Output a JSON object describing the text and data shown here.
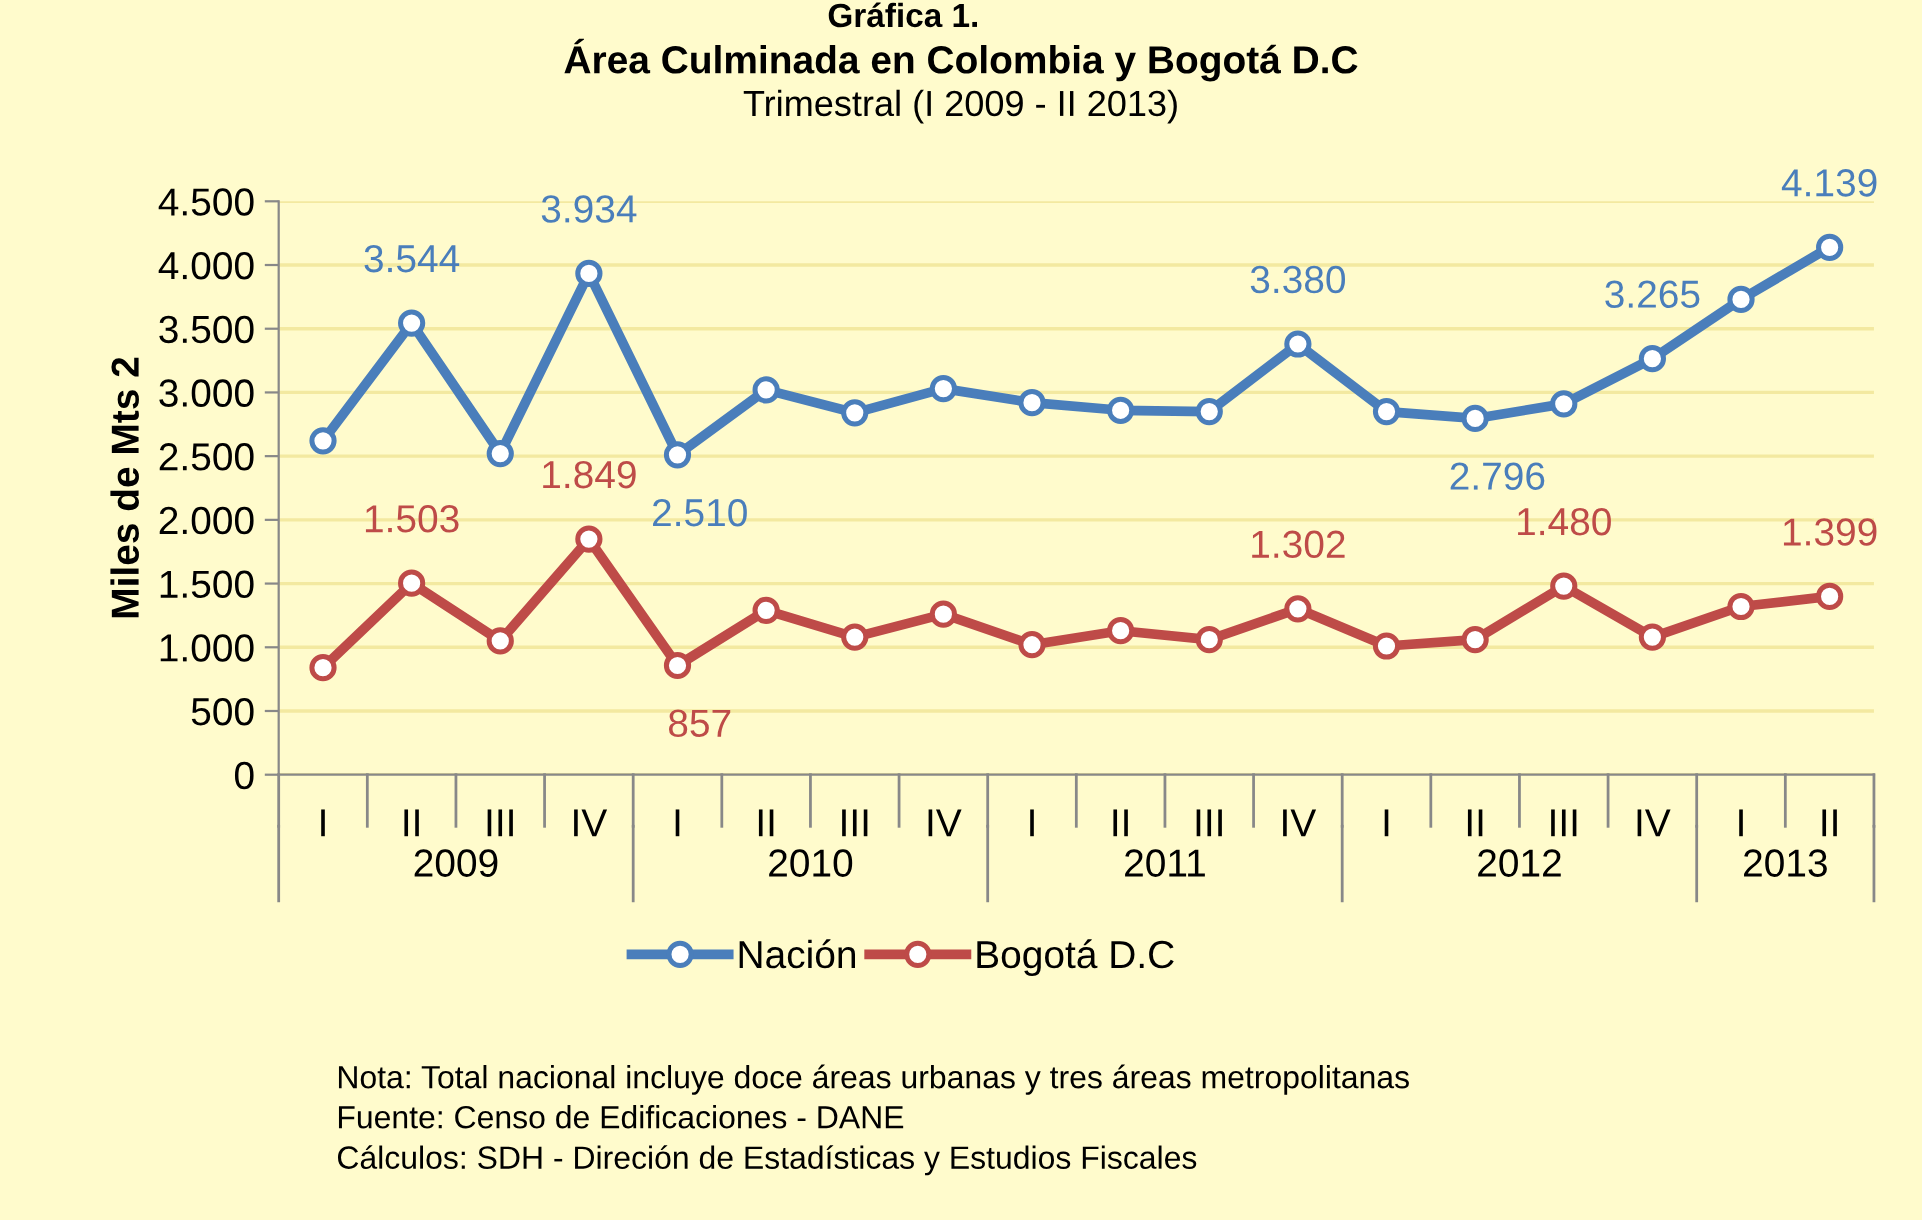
{
  "chart_data": {
    "type": "line",
    "title": "Área Culminada en Colombia y Bogotá D.C",
    "subtitle": "Trimestral (I 2009 - II 2013)",
    "ylabel": "Miles de Mts 2",
    "categories": [
      "I",
      "II",
      "III",
      "IV",
      "I",
      "II",
      "III",
      "IV",
      "I",
      "II",
      "III",
      "IV",
      "I",
      "II",
      "III",
      "IV",
      "I",
      "II"
    ],
    "series": [
      {
        "name": "Nación",
        "color": "#4a7ebb",
        "values": [
          2620,
          3544,
          2520,
          3934,
          2510,
          3020,
          2840,
          3030,
          2920,
          2860,
          2850,
          3380,
          2850,
          2796,
          2910,
          3265,
          3730,
          4139
        ],
        "value_labels": [
          null,
          "3.544",
          null,
          "3.934",
          "2.510",
          null,
          null,
          null,
          null,
          null,
          null,
          "3.380",
          null,
          "2.796",
          null,
          "3.265",
          null,
          "4.139"
        ]
      },
      {
        "name": "Bogotá D.C",
        "color": "#be4b48",
        "values": [
          840,
          1503,
          1050,
          1849,
          857,
          1290,
          1080,
          1260,
          1020,
          1130,
          1060,
          1302,
          1010,
          1060,
          1480,
          1080,
          1320,
          1399
        ],
        "value_labels": [
          null,
          "1.503",
          null,
          "1.849",
          "857",
          null,
          null,
          null,
          null,
          null,
          null,
          "1.302",
          null,
          null,
          "1.480",
          null,
          null,
          "1.399"
        ]
      }
    ],
    "ylim": [
      0,
      4500
    ],
    "yticks": [
      0,
      {
        "value": 500,
        "label": "500"
      },
      {
        "value": 1000,
        "label": "1.000"
      },
      {
        "value": 1500,
        "label": "1.500"
      },
      {
        "value": 2000,
        "label": "2.000"
      },
      {
        "value": 2500,
        "label": "2.500"
      },
      {
        "value": 3000,
        "label": "3.000"
      },
      {
        "value": 3500,
        "label": "3.500"
      },
      {
        "value": 4000,
        "label": "4.000"
      },
      {
        "value": 4500,
        "label": "4.500"
      }
    ],
    "grid": "y",
    "legend": "bottom",
    "marker": "circle",
    "line_style": "solid",
    "annotations": [
      "Gráfica 1.",
      "2009",
      "2010",
      "2011",
      "2012",
      "2013",
      "Nota: Total nacional incluye doce áreas urbanas y tres áreas metropolitanas",
      "Fuente: Censo de Edificaciones - DANE",
      "Cálculos: SDH - Direción de Estadísticas y Estudios Fiscales"
    ]
  }
}
